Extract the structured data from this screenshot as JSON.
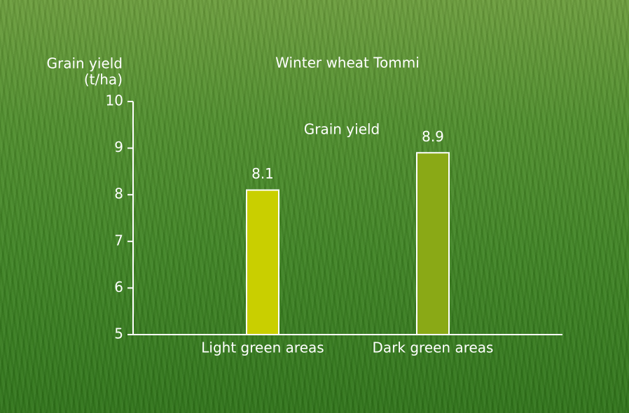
{
  "chart_data": {
    "type": "bar",
    "title": "Winter wheat Tommi",
    "ylabel": "Grain yield",
    "yunit": "(t/ha)",
    "annotation": "Grain yield",
    "categories": [
      "Light green areas",
      "Dark green areas"
    ],
    "values": [
      8.1,
      8.9
    ],
    "colors": [
      "#c9cf00",
      "#8aa916"
    ],
    "ylim": [
      5,
      10
    ],
    "yticks": [
      5,
      6,
      7,
      8,
      9,
      10
    ],
    "grid": false
  }
}
